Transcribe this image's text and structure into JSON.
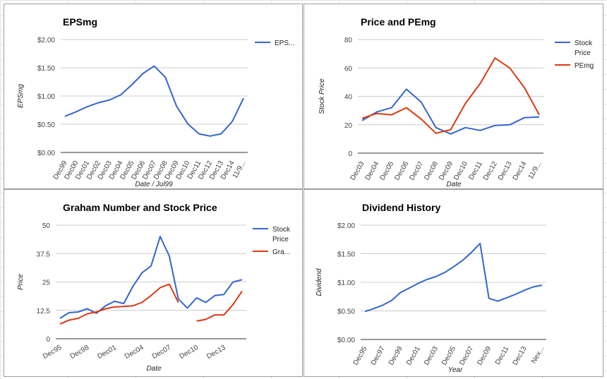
{
  "chart_data": [
    {
      "id": "c1",
      "type": "line",
      "title": "EPSmg",
      "xlabel": "Date / Jul99",
      "ylabel": "EPSmg",
      "ylim": [
        0,
        2
      ],
      "yticks": [
        "$0.00",
        "$0.50",
        "$1.00",
        "$1.50",
        "$2.00"
      ],
      "categories": [
        "Dec99",
        "Dec00",
        "Dec01",
        "Dec02",
        "Dec03",
        "Dec04",
        "Dec05",
        "Dec06",
        "Dec07",
        "Dec08",
        "Dec09",
        "Dec10",
        "Dec11",
        "Dec12",
        "Dec13",
        "Dec14",
        "11/9..."
      ],
      "series": [
        {
          "name": "EPS...",
          "color": "#3366cc",
          "values": [
            0.64,
            0.72,
            0.81,
            0.88,
            0.93,
            1.02,
            1.2,
            1.4,
            1.53,
            1.33,
            0.82,
            0.51,
            0.33,
            0.29,
            0.33,
            0.55,
            0.96
          ]
        }
      ],
      "legend": "right",
      "grid": true
    },
    {
      "id": "c2",
      "type": "line",
      "title": "Price and PEmg",
      "xlabel": "Date",
      "ylabel": "Stock Price",
      "ylim": [
        0,
        80
      ],
      "yticks": [
        "0",
        "20",
        "40",
        "60",
        "80"
      ],
      "categories": [
        "Dec03",
        "Dec04",
        "Dec05",
        "Dec06",
        "Dec07",
        "Dec08",
        "Dec09",
        "Dec10",
        "Dec11",
        "Dec12",
        "Dec13",
        "Dec14",
        "11/9..."
      ],
      "series": [
        {
          "name": "Stock Price",
          "color": "#3366cc",
          "values": [
            23,
            29,
            32,
            45,
            36,
            18,
            13.5,
            18,
            16,
            19.5,
            20,
            25,
            25.5
          ]
        },
        {
          "name": "PEmg",
          "color": "#dc3912",
          "values": [
            24.5,
            28,
            27,
            32,
            24,
            14,
            16.5,
            35,
            49,
            67,
            60,
            46,
            27
          ]
        }
      ],
      "legend": "right",
      "grid": true
    },
    {
      "id": "c3",
      "type": "line",
      "title": "Graham Number and Stock Price",
      "xlabel": "Date",
      "ylabel": "Price",
      "ylim": [
        0,
        50
      ],
      "yticks": [
        "0",
        "12.5",
        "25",
        "37.5",
        "50"
      ],
      "categories": [
        "Dec95",
        "Dec96",
        "Dec97",
        "Dec98",
        "Dec99",
        "Dec00",
        "Dec01",
        "Dec02",
        "Dec03",
        "Dec04",
        "Dec05",
        "Dec06",
        "Dec07",
        "Dec08",
        "Dec09",
        "Dec10",
        "Dec11",
        "Dec12",
        "Dec13",
        "Dec14",
        "Dec15"
      ],
      "shown_tick_labels": [
        "Dec95",
        "Dec98",
        "Dec01",
        "Dec04",
        "Dec07",
        "Dec10",
        "Dec13"
      ],
      "series": [
        {
          "name": "Stock Price",
          "color": "#3366cc",
          "values": [
            9,
            11.5,
            11.8,
            13.2,
            11.2,
            14.5,
            16.5,
            15.5,
            23,
            29,
            32,
            45,
            36.5,
            17.5,
            13.5,
            18,
            16,
            19,
            19.5,
            25,
            26
          ]
        },
        {
          "name": "Gra...",
          "color": "#dc3912",
          "values": [
            6.5,
            8.2,
            9,
            11,
            11.8,
            13.2,
            14,
            14.2,
            14.5,
            16,
            19,
            22.5,
            24,
            16,
            null,
            7.8,
            8.5,
            10.5,
            10.5,
            15,
            21
          ]
        }
      ],
      "legend": "right",
      "grid": true
    },
    {
      "id": "c4",
      "type": "line",
      "title": "Dividend History",
      "xlabel": "Year",
      "ylabel": "Dividend",
      "ylim": [
        0,
        2
      ],
      "yticks": [
        "$0.00",
        "$0.50",
        "$1.00",
        "$1.50",
        "$2.00"
      ],
      "categories": [
        "Dec95",
        "Dec96",
        "Dec97",
        "Dec98",
        "Dec99",
        "Dec00",
        "Dec01",
        "Dec02",
        "Dec03",
        "Dec04",
        "Dec05",
        "Dec06",
        "Dec07",
        "Dec08",
        "Dec09",
        "Dec10",
        "Dec11",
        "Dec12",
        "Dec13",
        "Dec14",
        "Nex..."
      ],
      "shown_tick_labels": [
        "Dec95",
        "Dec97",
        "Dec99",
        "Dec01",
        "Dec03",
        "Dec05",
        "Dec07",
        "Dec09",
        "Dec11",
        "Dec13",
        "Nex..."
      ],
      "series": [
        {
          "name": "",
          "color": "#3366cc",
          "values": [
            0.49,
            0.54,
            0.6,
            0.68,
            0.82,
            0.9,
            0.98,
            1.05,
            1.1,
            1.17,
            1.27,
            1.38,
            1.52,
            1.68,
            0.72,
            0.67,
            0.73,
            0.79,
            0.86,
            0.92,
            0.95
          ]
        }
      ],
      "legend": "none",
      "grid": true
    }
  ]
}
